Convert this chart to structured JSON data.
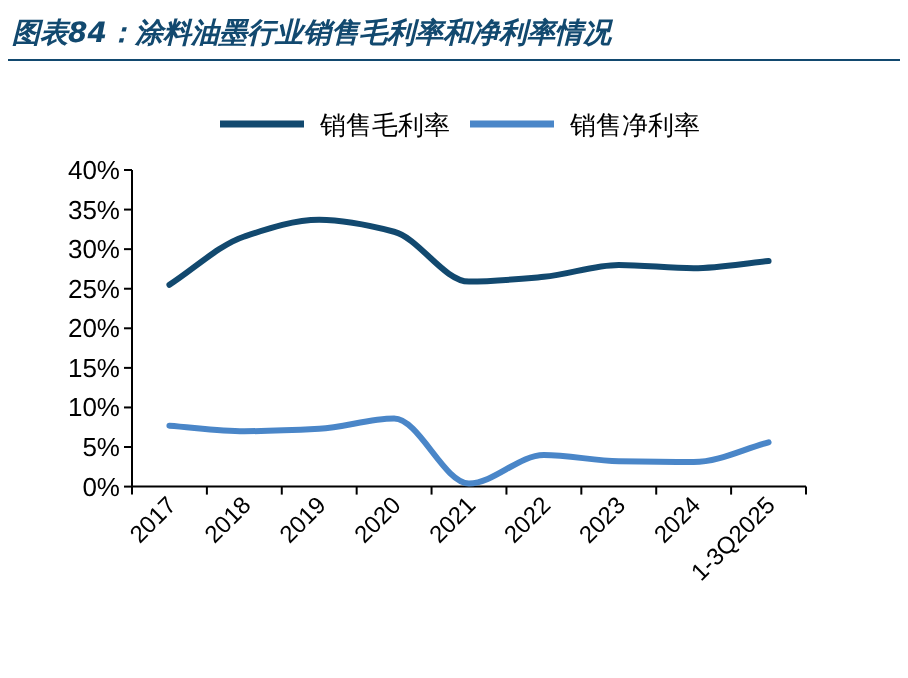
{
  "chart_data": {
    "type": "line",
    "title": "图表84：涂料油墨行业销售毛利率和净利率情况",
    "categories": [
      "2017",
      "2018",
      "2019",
      "2020",
      "2021",
      "2022",
      "2023",
      "2024",
      "1-3Q2025"
    ],
    "series": [
      {
        "name": "销售毛利率",
        "color": "#12496f",
        "values": [
          25.5,
          31.6,
          33.7,
          32.2,
          25.9,
          26.5,
          28.0,
          27.6,
          28.5
        ]
      },
      {
        "name": "销售净利率",
        "color": "#4a86c8",
        "values": [
          7.7,
          7.0,
          7.3,
          8.6,
          0.4,
          4.0,
          3.2,
          3.1,
          5.6
        ]
      }
    ],
    "ylim": [
      0,
      40
    ],
    "yticks": [
      {
        "value": 0,
        "label": "0%"
      },
      {
        "value": 5,
        "label": "5%"
      },
      {
        "value": 10,
        "label": "10%"
      },
      {
        "value": 15,
        "label": "15%"
      },
      {
        "value": 20,
        "label": "20%"
      },
      {
        "value": 25,
        "label": "25%"
      },
      {
        "value": 30,
        "label": "30%"
      },
      {
        "value": 35,
        "label": "35%"
      },
      {
        "value": 40,
        "label": "40%"
      }
    ],
    "grid": false,
    "legend": "top",
    "marker": "none",
    "line_style": "solid"
  }
}
